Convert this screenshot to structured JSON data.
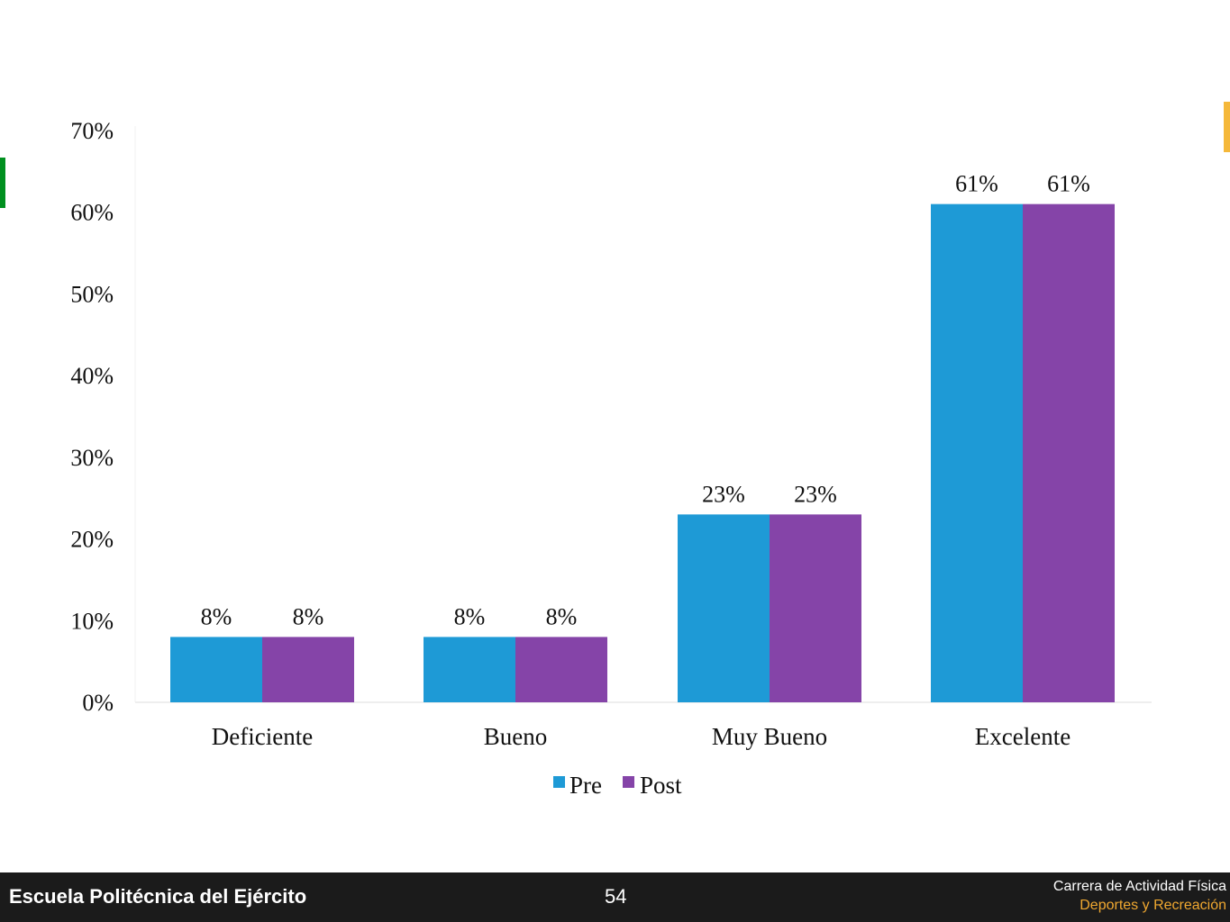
{
  "chart_data": {
    "type": "bar",
    "categories": [
      "Deficiente",
      "Bueno",
      "Muy Bueno",
      "Excelente"
    ],
    "series": [
      {
        "name": "Pre",
        "values": [
          8,
          8,
          23,
          61
        ],
        "labels": [
          "8%",
          "8%",
          "23%",
          "61%"
        ],
        "color": "#1e9ad6"
      },
      {
        "name": "Post",
        "values": [
          8,
          8,
          23,
          61
        ],
        "labels": [
          "8%",
          "8%",
          "23%",
          "61%"
        ],
        "color": "#8544a8"
      }
    ],
    "yticks": [
      "0%",
      "10%",
      "20%",
      "30%",
      "40%",
      "50%",
      "60%",
      "70%"
    ],
    "ylim": [
      0,
      70
    ],
    "legend_position": "bottom",
    "grid": false
  },
  "footer": {
    "institution": "Escuela Politécnica del Ejército",
    "page_number": "54",
    "program_line1": "Carrera de Actividad Física",
    "program_line2": "Deportes y Recreación"
  },
  "colors": {
    "accent_left": "#00901f",
    "accent_right": "#f5b83a",
    "footer_bg": "#1b1b1b"
  }
}
